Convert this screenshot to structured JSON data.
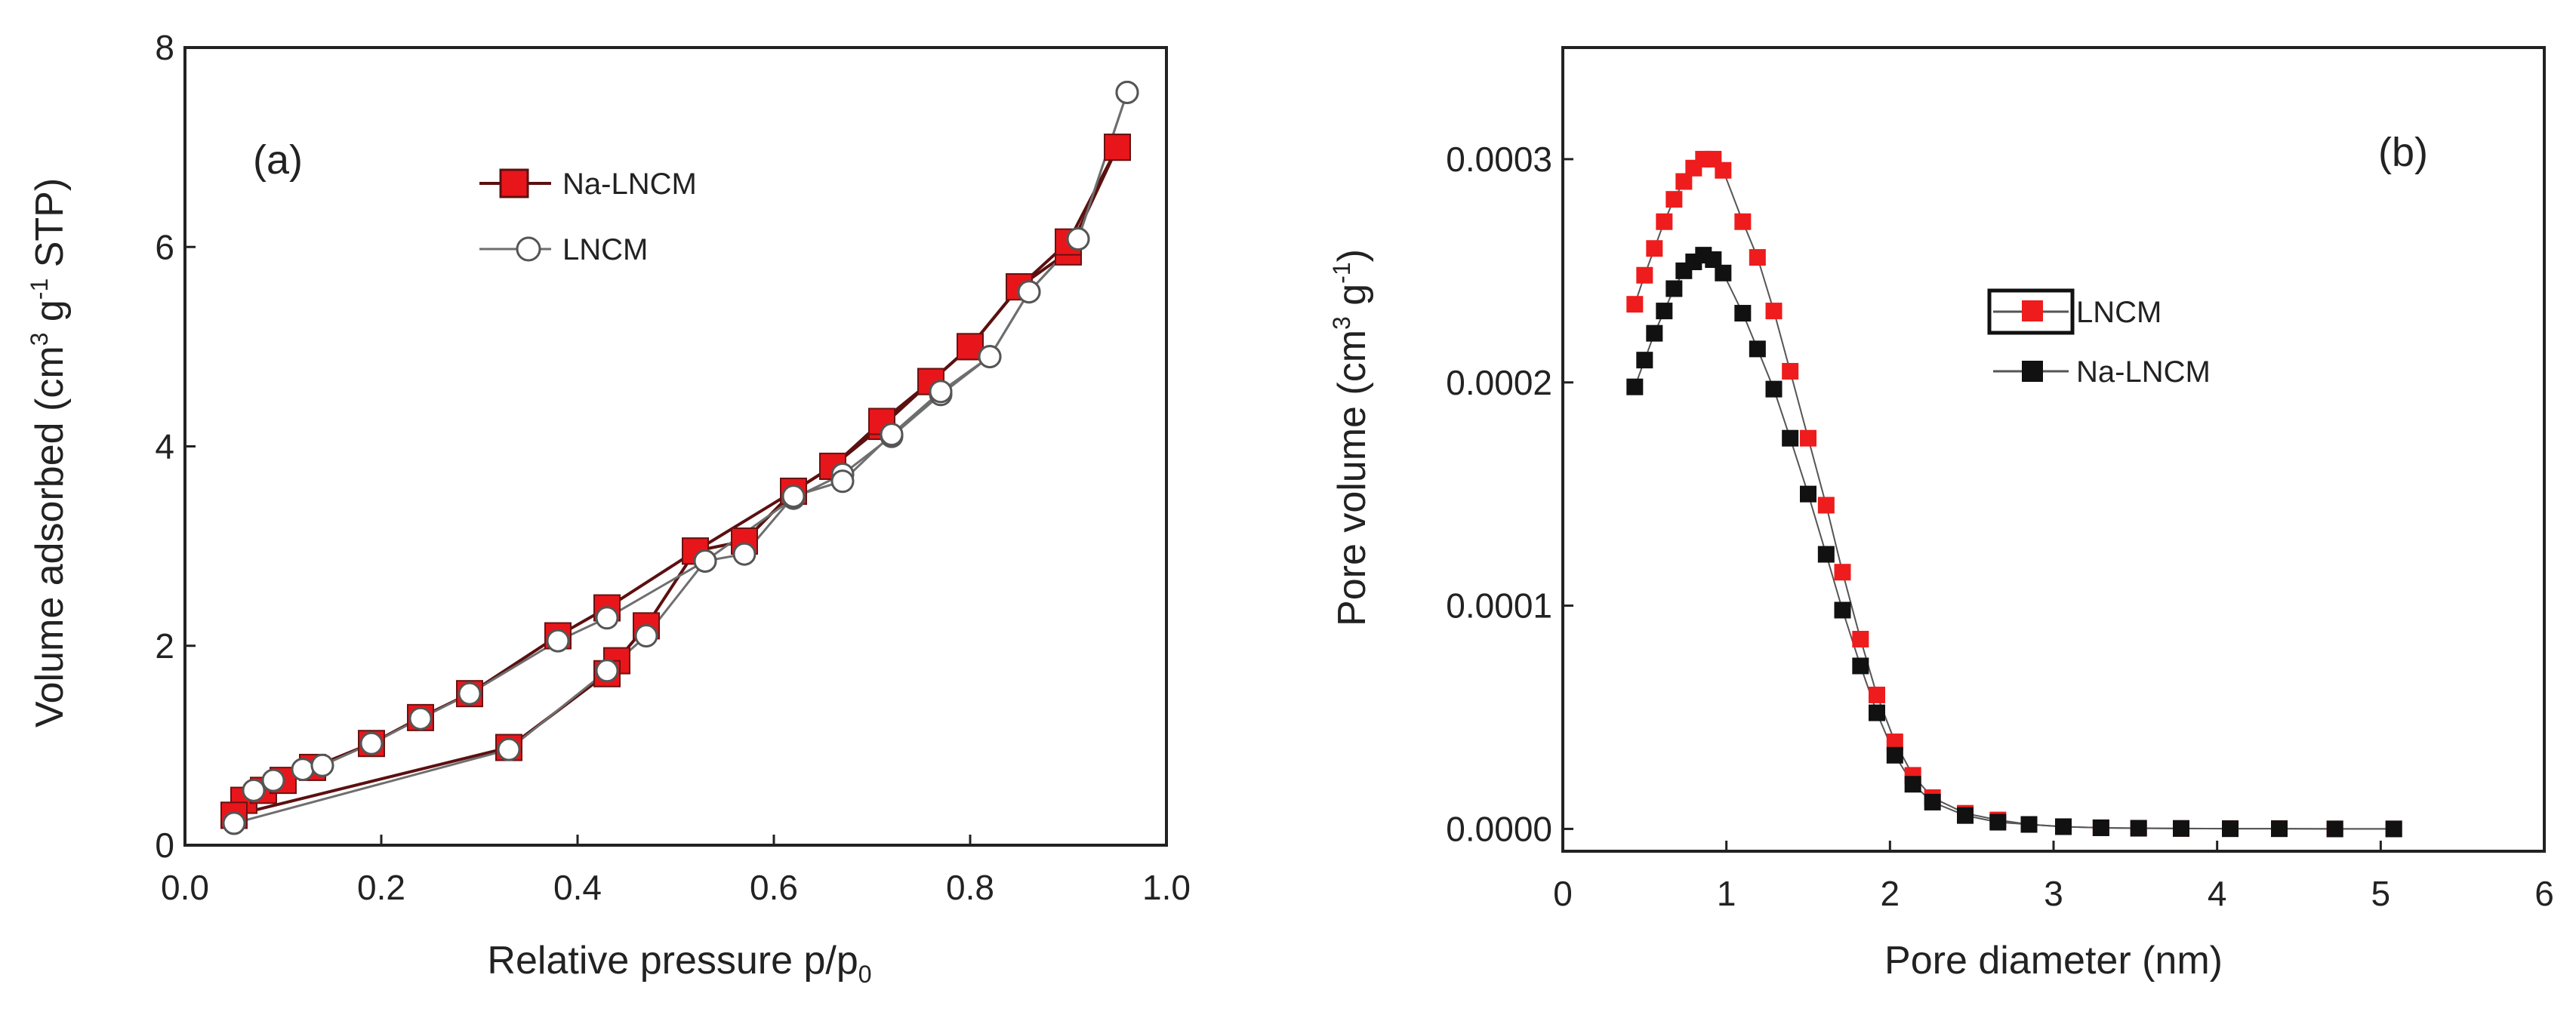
{
  "chart_data": [
    {
      "type": "scatter",
      "panel_label": "(a)",
      "title": "",
      "xlabel": "Relative pressure p/p",
      "xlabel_sub": "0",
      "ylabel_pre": "Volume adsorbed (cm",
      "ylabel_sup1": "3",
      "ylabel_mid": " g",
      "ylabel_sup2": "-1",
      "ylabel_post": " STP)",
      "xlim": [
        0.0,
        1.0
      ],
      "ylim": [
        0,
        8
      ],
      "xticks": [
        0.0,
        0.2,
        0.4,
        0.6,
        0.8,
        1.0
      ],
      "xtick_labels": [
        "0.0",
        "0.2",
        "0.4",
        "0.6",
        "0.8",
        "1.0"
      ],
      "yticks": [
        0,
        2,
        4,
        6,
        8
      ],
      "ytick_labels": [
        "0",
        "2",
        "4",
        "6",
        "8"
      ],
      "legend_position": "upper-center",
      "series": [
        {
          "name": "Na-LNCM",
          "marker": "filled-square",
          "color": "#e8161a",
          "line_color": "#5c1010",
          "adsorption": {
            "x": [
              0.05,
              0.06,
              0.08,
              0.1,
              0.13,
              0.19,
              0.24,
              0.29,
              0.38,
              0.43,
              0.52,
              0.62,
              0.66,
              0.71,
              0.76,
              0.8,
              0.85,
              0.9,
              0.95
            ],
            "y": [
              0.3,
              0.45,
              0.55,
              0.65,
              0.78,
              1.02,
              1.28,
              1.52,
              2.1,
              2.38,
              2.95,
              3.55,
              3.8,
              4.2,
              4.65,
              5.0,
              5.6,
              5.95,
              7.0
            ]
          },
          "desorption": {
            "x": [
              0.95,
              0.9,
              0.85,
              0.8,
              0.76,
              0.71,
              0.66,
              0.62,
              0.57,
              0.52,
              0.47,
              0.44,
              0.43,
              0.33,
              0.05
            ],
            "y": [
              7.0,
              6.05,
              5.6,
              5.0,
              4.65,
              4.25,
              3.8,
              3.55,
              3.05,
              2.95,
              2.2,
              1.85,
              1.72,
              0.98,
              0.3
            ]
          }
        },
        {
          "name": "LNCM",
          "marker": "open-circle",
          "color": "#ffffff",
          "line_color": "#6e6e6e",
          "adsorption": {
            "x": [
              0.05,
              0.07,
              0.09,
              0.12,
              0.14,
              0.19,
              0.24,
              0.29,
              0.38,
              0.43,
              0.53,
              0.62,
              0.67,
              0.72,
              0.77,
              0.82,
              0.86,
              0.91,
              0.96
            ],
            "y": [
              0.22,
              0.55,
              0.65,
              0.76,
              0.8,
              1.02,
              1.27,
              1.52,
              2.05,
              2.28,
              2.85,
              3.48,
              3.72,
              4.1,
              4.52,
              4.9,
              5.55,
              6.08,
              7.55
            ]
          },
          "desorption": {
            "x": [
              0.96,
              0.91,
              0.86,
              0.82,
              0.77,
              0.72,
              0.67,
              0.62,
              0.57,
              0.53,
              0.47,
              0.43,
              0.33,
              0.05
            ],
            "y": [
              7.55,
              6.08,
              5.55,
              4.9,
              4.55,
              4.12,
              3.65,
              3.5,
              2.92,
              2.85,
              2.1,
              1.75,
              0.96,
              0.22
            ]
          }
        }
      ]
    },
    {
      "type": "scatter",
      "panel_label": "(b)",
      "title": "",
      "xlabel": "Pore diameter (nm)",
      "ylabel_pre": "Pore volume (cm",
      "ylabel_sup1": "3",
      "ylabel_mid": " g",
      "ylabel_sup2": "-1",
      "ylabel_post": ")",
      "xlim": [
        0,
        6
      ],
      "ylim": [
        -1e-05,
        0.00035
      ],
      "xticks": [
        0,
        1,
        2,
        3,
        4,
        5,
        6
      ],
      "xtick_labels": [
        "0",
        "1",
        "2",
        "3",
        "4",
        "5",
        "6"
      ],
      "yticks": [
        0.0,
        0.0001,
        0.0002,
        0.0003
      ],
      "ytick_labels": [
        "0.0000",
        "0.0001",
        "0.0002",
        "0.0003"
      ],
      "legend_position": "upper-right",
      "series": [
        {
          "name": "LNCM",
          "marker": "filled-square",
          "color": "#ee1c1c",
          "line_color": "#555555",
          "x": [
            0.44,
            0.5,
            0.56,
            0.62,
            0.68,
            0.74,
            0.8,
            0.86,
            0.92,
            0.98,
            1.1,
            1.19,
            1.29,
            1.39,
            1.5,
            1.61,
            1.71,
            1.82,
            1.92,
            2.03,
            2.14,
            2.26,
            2.46,
            2.66,
            2.85,
            3.06,
            3.29,
            3.52,
            3.78,
            4.08,
            4.38,
            4.72,
            5.08
          ],
          "y": [
            0.000235,
            0.000248,
            0.00026,
            0.000272,
            0.000282,
            0.00029,
            0.000296,
            0.0003,
            0.0003,
            0.000295,
            0.000272,
            0.000256,
            0.000232,
            0.000205,
            0.000175,
            0.000145,
            0.000115,
            8.5e-05,
            6e-05,
            3.9e-05,
            2.4e-05,
            1.4e-05,
            7e-06,
            4e-06,
            2e-06,
            1e-06,
            5e-07,
            3e-07,
            2e-07,
            1e-07,
            1e-07,
            0.0,
            0.0
          ]
        },
        {
          "name": "Na-LNCM",
          "marker": "filled-square",
          "color": "#111111",
          "line_color": "#555555",
          "x": [
            0.44,
            0.5,
            0.56,
            0.62,
            0.68,
            0.74,
            0.8,
            0.86,
            0.92,
            0.98,
            1.1,
            1.19,
            1.29,
            1.39,
            1.5,
            1.61,
            1.71,
            1.82,
            1.92,
            2.03,
            2.14,
            2.26,
            2.46,
            2.66,
            2.85,
            3.06,
            3.29,
            3.52,
            3.78,
            4.08,
            4.38,
            4.72,
            5.08
          ],
          "y": [
            0.000198,
            0.00021,
            0.000222,
            0.000232,
            0.000242,
            0.00025,
            0.000254,
            0.000257,
            0.000255,
            0.000249,
            0.000231,
            0.000215,
            0.000197,
            0.000175,
            0.00015,
            0.000123,
            9.8e-05,
            7.3e-05,
            5.2e-05,
            3.3e-05,
            2e-05,
            1.2e-05,
            6e-06,
            3e-06,
            2e-06,
            1e-06,
            5e-07,
            3e-07,
            2e-07,
            1e-07,
            1e-07,
            0.0,
            0.0
          ]
        }
      ]
    }
  ]
}
